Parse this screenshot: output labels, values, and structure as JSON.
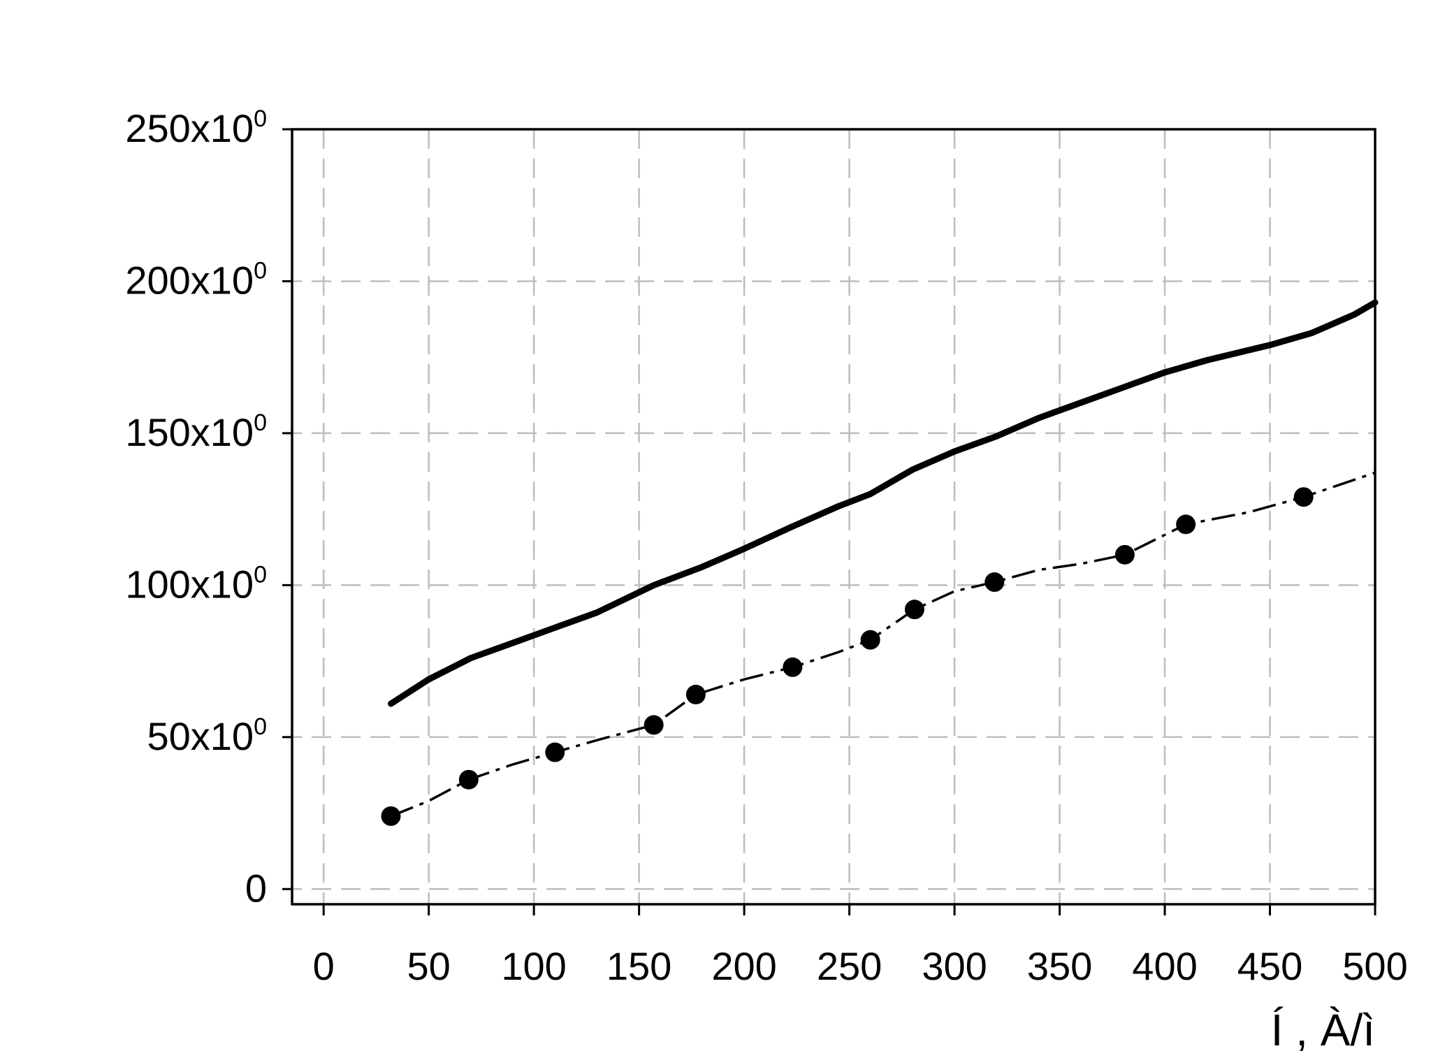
{
  "chart_data": {
    "type": "line",
    "title": "",
    "xlabel": "Í , À/ì",
    "ylabel": "",
    "xlim": [
      -15,
      500
    ],
    "ylim": [
      -5,
      250
    ],
    "grid": true,
    "legend": "none",
    "x_ticks": [
      "0",
      "50",
      "100",
      "150",
      "200",
      "250",
      "300",
      "350",
      "400",
      "450",
      "500"
    ],
    "y_ticks": [
      {
        "value": 0,
        "mantissa": "0",
        "exponent": ""
      },
      {
        "value": 50,
        "mantissa": "50x10",
        "exponent": "0"
      },
      {
        "value": 100,
        "mantissa": "100x10",
        "exponent": "0"
      },
      {
        "value": 150,
        "mantissa": "150x10",
        "exponent": "0"
      },
      {
        "value": 200,
        "mantissa": "200x10",
        "exponent": "0"
      },
      {
        "value": 250,
        "mantissa": "250x10",
        "exponent": "0"
      }
    ],
    "series": [
      {
        "style": "solid-thick",
        "color": "#000000",
        "x": [
          32,
          50,
          70,
          90,
          110,
          130,
          157,
          180,
          200,
          222,
          245,
          260,
          280,
          300,
          320,
          340,
          360,
          380,
          400,
          420,
          450,
          470,
          490,
          500
        ],
        "y": [
          61,
          69,
          76,
          81,
          86,
          91,
          100,
          106,
          112,
          119,
          126,
          130,
          138,
          144,
          149,
          155,
          160,
          165,
          170,
          174,
          179,
          183,
          189,
          193
        ]
      },
      {
        "style": "dash-dot-with-circles",
        "color": "#000000",
        "x": [
          32,
          50,
          69,
          90,
          110,
          130,
          157,
          177,
          200,
          223,
          245,
          260,
          281,
          300,
          319,
          340,
          360,
          381,
          410,
          440,
          466,
          500
        ],
        "y": [
          24,
          29,
          36,
          41,
          45,
          49,
          54,
          64,
          69,
          73,
          78,
          82,
          92,
          98,
          101,
          105,
          107,
          110,
          120,
          124,
          129,
          137
        ],
        "markers": [
          [
            32,
            24
          ],
          [
            69,
            36
          ],
          [
            110,
            45
          ],
          [
            157,
            54
          ],
          [
            177,
            64
          ],
          [
            223,
            73
          ],
          [
            260,
            82
          ],
          [
            281,
            92
          ],
          [
            319,
            101
          ],
          [
            381,
            110
          ],
          [
            410,
            120
          ],
          [
            466,
            129
          ]
        ]
      }
    ]
  }
}
